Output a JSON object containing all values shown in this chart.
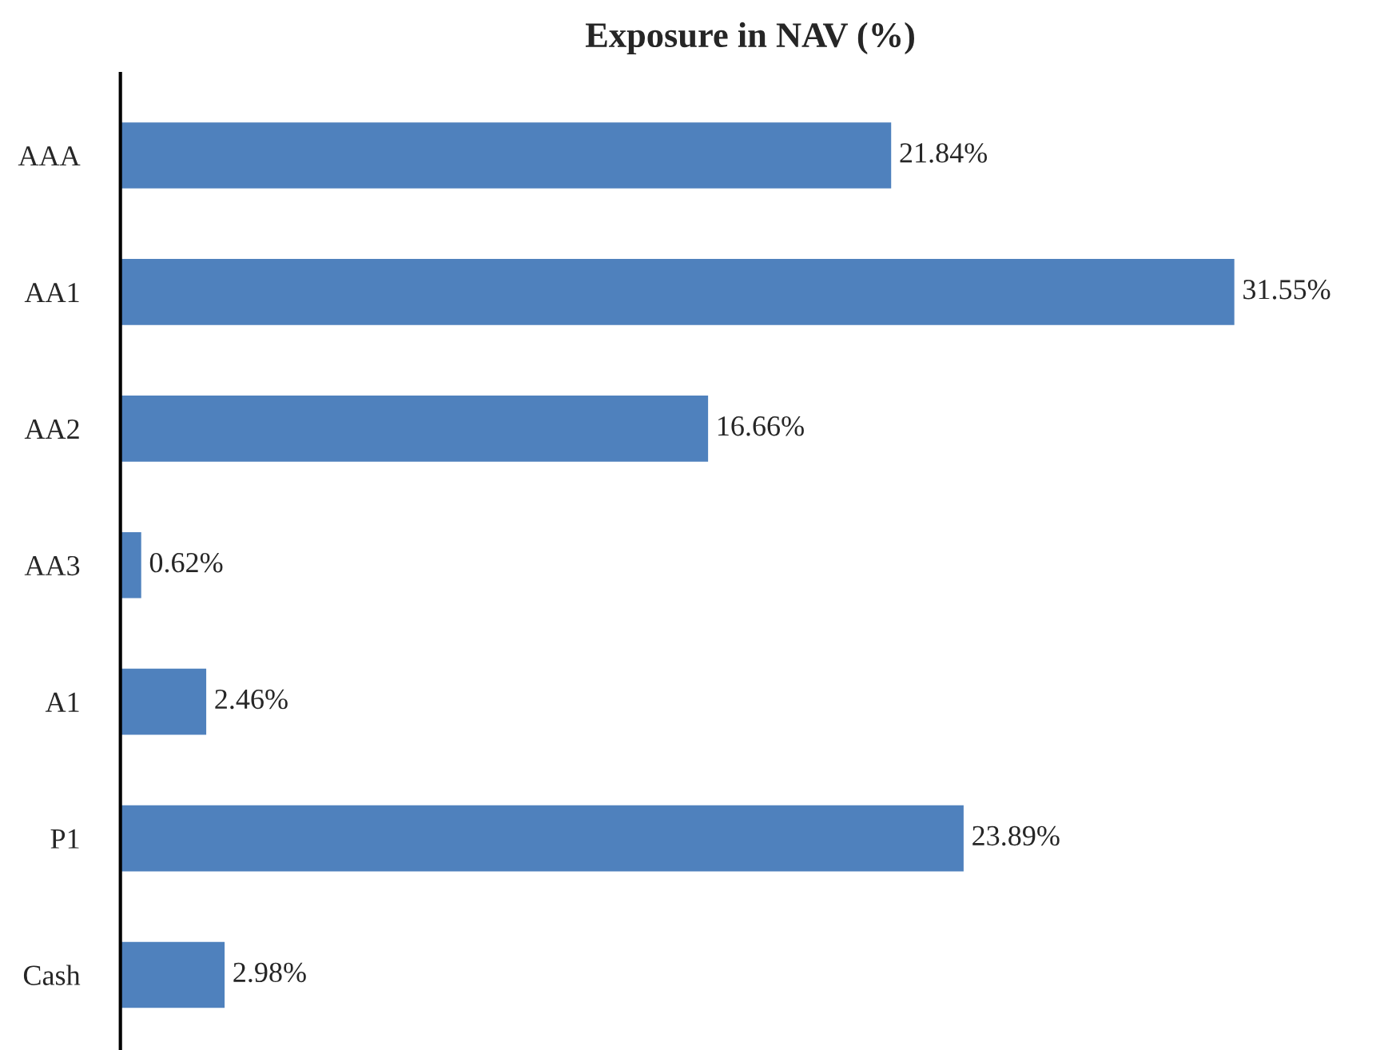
{
  "chart_data": {
    "type": "bar",
    "orientation": "horizontal",
    "title": "Exposure in NAV (%)",
    "categories": [
      "AAA",
      "AA1",
      "AA2",
      "AA3",
      "A1",
      "P1",
      "Cash"
    ],
    "values": [
      21.84,
      31.55,
      16.66,
      0.62,
      2.46,
      23.89,
      2.98
    ],
    "value_labels": [
      "21.84%",
      "31.55%",
      "16.66%",
      "0.62%",
      "2.46%",
      "23.89%",
      "2.98%"
    ],
    "color": "#4f81bd",
    "grid": false,
    "legend": false
  }
}
